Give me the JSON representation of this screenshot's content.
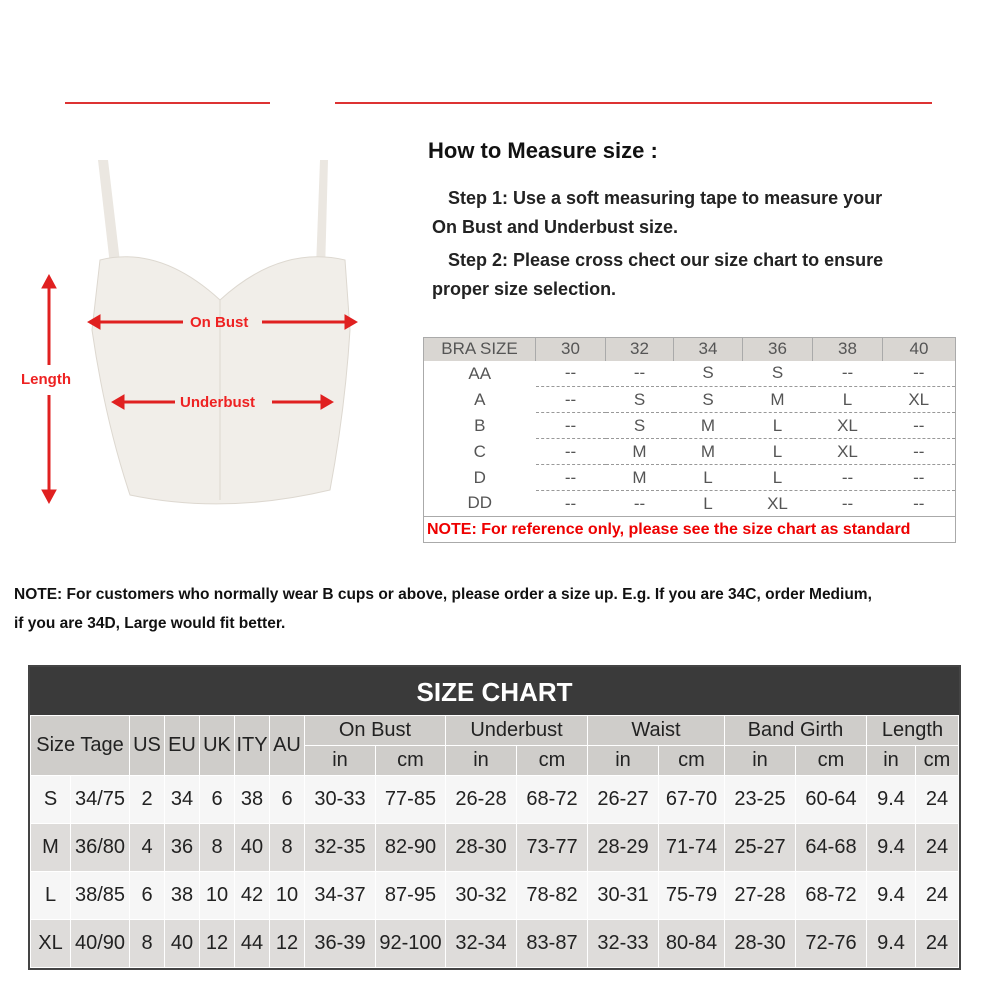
{
  "howto": {
    "title": "How to Measure size :",
    "step1": "Step 1: Use a soft measuring tape to measure your",
    "step1b": "On Bust and Underbust size.",
    "step2": "Step 2: Please cross chect our size chart to ensure",
    "step2b": "proper size selection."
  },
  "figure": {
    "on_bust": "On Bust",
    "underbust": "Underbust",
    "length": "Length",
    "accent": "#e02020"
  },
  "bra_table": {
    "header": [
      "BRA SIZE",
      "30",
      "32",
      "34",
      "36",
      "38",
      "40"
    ],
    "rows": [
      [
        "AA",
        "--",
        "--",
        "S",
        "S",
        "--",
        "--"
      ],
      [
        "A",
        "--",
        "S",
        "S",
        "M",
        "L",
        "XL"
      ],
      [
        "B",
        "--",
        "S",
        "M",
        "L",
        "XL",
        "--"
      ],
      [
        "C",
        "--",
        "M",
        "M",
        "L",
        "XL",
        "--"
      ],
      [
        "D",
        "--",
        "M",
        "L",
        "L",
        "--",
        "--"
      ],
      [
        "DD",
        "--",
        "--",
        "L",
        "XL",
        "--",
        "--"
      ]
    ],
    "note": "NOTE: For reference only, please see the size chart as standard"
  },
  "note": {
    "line1": "NOTE: For customers who normally wear B cups or above, please order a size up. E.g. If you are 34C, order Medium,",
    "line2": "if you are 34D, Large would fit better."
  },
  "size_chart": {
    "title": "SIZE CHART",
    "size_tage": "Size Tage",
    "cols": [
      "US",
      "EU",
      "UK",
      "ITY",
      "AU"
    ],
    "groups": [
      "On Bust",
      "Underbust",
      "Waist",
      "Band Girth",
      "Length"
    ],
    "units": [
      "in",
      "cm"
    ],
    "rows": [
      [
        "S",
        "34/75",
        "2",
        "34",
        "6",
        "38",
        "6",
        "30-33",
        "77-85",
        "26-28",
        "68-72",
        "26-27",
        "67-70",
        "23-25",
        "60-64",
        "9.4",
        "24"
      ],
      [
        "M",
        "36/80",
        "4",
        "36",
        "8",
        "40",
        "8",
        "32-35",
        "82-90",
        "28-30",
        "73-77",
        "28-29",
        "71-74",
        "25-27",
        "64-68",
        "9.4",
        "24"
      ],
      [
        "L",
        "38/85",
        "6",
        "38",
        "10",
        "42",
        "10",
        "34-37",
        "87-95",
        "30-32",
        "78-82",
        "30-31",
        "75-79",
        "27-28",
        "68-72",
        "9.4",
        "24"
      ],
      [
        "XL",
        "40/90",
        "8",
        "40",
        "12",
        "44",
        "12",
        "36-39",
        "92-100",
        "32-34",
        "83-87",
        "32-33",
        "80-84",
        "28-30",
        "72-76",
        "9.4",
        "24"
      ]
    ]
  }
}
